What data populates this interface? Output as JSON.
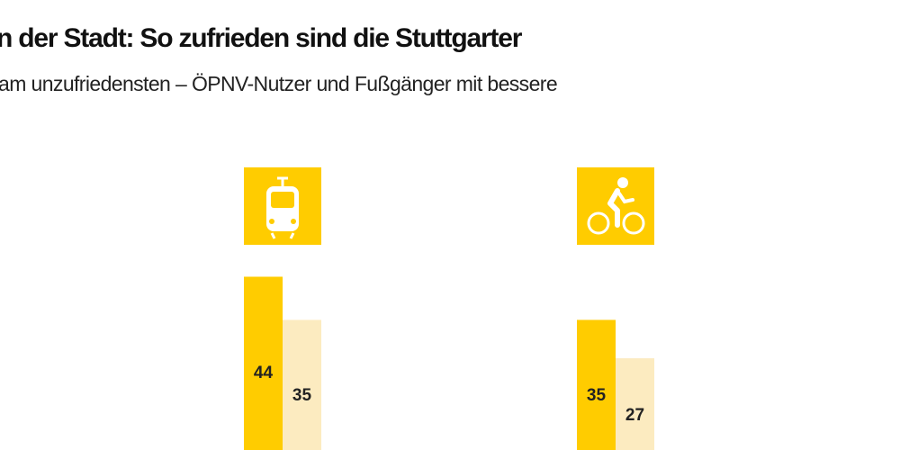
{
  "title": "n der Stadt: So zufrieden sind die Stuttgarter",
  "subtitle": "am unzufriedensten – ÖPNV-Nutzer und Fußgänger mit bessere",
  "colors": {
    "primary": "#FFCC00",
    "secondary": "#FCEBC0",
    "label": "#222222",
    "icon_fg": "#FFFFFF"
  },
  "chart_data": {
    "type": "bar",
    "categories": [
      "tram",
      "bicycle"
    ],
    "category_icons": [
      "tram-icon",
      "bicycle-icon"
    ],
    "series": [
      {
        "values": [
          44,
          35
        ]
      },
      {
        "values": [
          35,
          27
        ]
      }
    ],
    "grid": false
  }
}
